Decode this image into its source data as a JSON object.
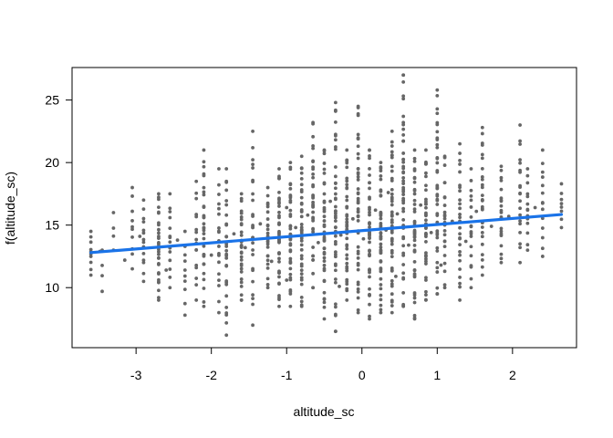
{
  "chart_data": {
    "type": "scatter",
    "title": "",
    "xlabel": "altitude_sc",
    "ylabel": "f(altitude_sc)",
    "xlim": [
      -3.85,
      2.85
    ],
    "ylim": [
      5.2,
      27.6
    ],
    "xticks": [
      -3,
      -2,
      -1,
      0,
      1,
      2
    ],
    "yticks": [
      10,
      15,
      20,
      25
    ],
    "grid": false,
    "point_color": "#666666",
    "line_color": "#1a73e8",
    "fit_line": {
      "x": [
        -3.6,
        2.65
      ],
      "y": [
        12.8,
        15.85
      ]
    },
    "columns": [
      {
        "x": -3.6,
        "ymin": 11.0,
        "ymax": 14.5,
        "n": 10
      },
      {
        "x": -3.45,
        "ymin": 9.7,
        "ymax": 13.0,
        "n": 4
      },
      {
        "x": -3.3,
        "ymin": 13.0,
        "ymax": 16.0,
        "n": 4
      },
      {
        "x": -3.05,
        "ymin": 11.5,
        "ymax": 18.0,
        "n": 10
      },
      {
        "x": -2.9,
        "ymin": 10.5,
        "ymax": 17.0,
        "n": 14
      },
      {
        "x": -2.7,
        "ymin": 9.0,
        "ymax": 17.5,
        "n": 32
      },
      {
        "x": -2.55,
        "ymin": 10.0,
        "ymax": 17.5,
        "n": 14
      },
      {
        "x": -2.35,
        "ymin": 7.8,
        "ymax": 14.5,
        "n": 10
      },
      {
        "x": -2.2,
        "ymin": 9.0,
        "ymax": 18.5,
        "n": 16
      },
      {
        "x": -2.1,
        "ymin": 8.5,
        "ymax": 21.0,
        "n": 30
      },
      {
        "x": -1.9,
        "ymin": 8.0,
        "ymax": 19.5,
        "n": 20
      },
      {
        "x": -1.8,
        "ymin": 6.2,
        "ymax": 19.5,
        "n": 28
      },
      {
        "x": -1.6,
        "ymin": 9.0,
        "ymax": 17.5,
        "n": 32
      },
      {
        "x": -1.45,
        "ymin": 7.0,
        "ymax": 22.5,
        "n": 26
      },
      {
        "x": -1.25,
        "ymin": 10.0,
        "ymax": 18.0,
        "n": 26
      },
      {
        "x": -1.1,
        "ymin": 8.5,
        "ymax": 19.5,
        "n": 40
      },
      {
        "x": -0.95,
        "ymin": 8.5,
        "ymax": 20.0,
        "n": 40
      },
      {
        "x": -0.8,
        "ymin": 8.5,
        "ymax": 20.5,
        "n": 40
      },
      {
        "x": -0.65,
        "ymin": 10.0,
        "ymax": 23.2,
        "n": 34
      },
      {
        "x": -0.5,
        "ymin": 7.5,
        "ymax": 21.0,
        "n": 42
      },
      {
        "x": -0.35,
        "ymin": 6.5,
        "ymax": 24.8,
        "n": 44
      },
      {
        "x": -0.2,
        "ymin": 9.0,
        "ymax": 21.0,
        "n": 44
      },
      {
        "x": -0.05,
        "ymin": 8.0,
        "ymax": 24.5,
        "n": 48
      },
      {
        "x": 0.1,
        "ymin": 7.5,
        "ymax": 21.0,
        "n": 44
      },
      {
        "x": 0.25,
        "ymin": 8.0,
        "ymax": 20.0,
        "n": 44
      },
      {
        "x": 0.4,
        "ymin": 8.0,
        "ymax": 22.5,
        "n": 46
      },
      {
        "x": 0.55,
        "ymin": 8.5,
        "ymax": 27.0,
        "n": 50
      },
      {
        "x": 0.7,
        "ymin": 7.5,
        "ymax": 21.0,
        "n": 42
      },
      {
        "x": 0.85,
        "ymin": 9.0,
        "ymax": 21.0,
        "n": 40
      },
      {
        "x": 1.0,
        "ymin": 9.5,
        "ymax": 25.8,
        "n": 40
      },
      {
        "x": 1.1,
        "ymin": 10.0,
        "ymax": 20.5,
        "n": 24
      },
      {
        "x": 1.3,
        "ymin": 9.0,
        "ymax": 21.5,
        "n": 28
      },
      {
        "x": 1.45,
        "ymin": 10.0,
        "ymax": 19.5,
        "n": 18
      },
      {
        "x": 1.6,
        "ymin": 11.0,
        "ymax": 22.8,
        "n": 28
      },
      {
        "x": 1.85,
        "ymin": 12.0,
        "ymax": 19.7,
        "n": 22
      },
      {
        "x": 2.1,
        "ymin": 12.0,
        "ymax": 23.0,
        "n": 20
      },
      {
        "x": 2.2,
        "ymin": 13.0,
        "ymax": 19.5,
        "n": 14
      },
      {
        "x": 2.4,
        "ymin": 12.5,
        "ymax": 21.0,
        "n": 14
      },
      {
        "x": 2.65,
        "ymin": 14.8,
        "ymax": 18.3,
        "n": 8
      }
    ],
    "scatter_points": [
      {
        "x": -3.48,
        "y": 12.9
      },
      {
        "x": -3.15,
        "y": 12.2
      },
      {
        "x": -2.95,
        "y": 14.1
      },
      {
        "x": -2.6,
        "y": 11.4
      },
      {
        "x": -2.45,
        "y": 13.8
      },
      {
        "x": -2.0,
        "y": 12.6
      },
      {
        "x": -1.7,
        "y": 14.3
      },
      {
        "x": -1.55,
        "y": 13.2
      },
      {
        "x": -1.35,
        "y": 15.1
      },
      {
        "x": -1.2,
        "y": 12.1
      },
      {
        "x": -1.0,
        "y": 16.4
      },
      {
        "x": -0.88,
        "y": 14.8
      },
      {
        "x": -0.72,
        "y": 15.8
      },
      {
        "x": -0.58,
        "y": 13.6
      },
      {
        "x": -0.42,
        "y": 16.9
      },
      {
        "x": -0.28,
        "y": 14.2
      },
      {
        "x": -0.12,
        "y": 15.5
      },
      {
        "x": 0.02,
        "y": 13.9
      },
      {
        "x": 0.18,
        "y": 16.2
      },
      {
        "x": 0.32,
        "y": 14.6
      },
      {
        "x": 0.47,
        "y": 15.9
      },
      {
        "x": 0.62,
        "y": 13.4
      },
      {
        "x": 0.78,
        "y": 16.6
      },
      {
        "x": 0.92,
        "y": 14.4
      },
      {
        "x": 1.2,
        "y": 15.3
      },
      {
        "x": 1.38,
        "y": 13.7
      },
      {
        "x": 1.52,
        "y": 16.1
      },
      {
        "x": 1.72,
        "y": 14.9
      },
      {
        "x": 1.95,
        "y": 15.7
      },
      {
        "x": 2.3,
        "y": 16.4
      },
      {
        "x": -0.65,
        "y": 18.2
      },
      {
        "x": -0.05,
        "y": 19.1
      },
      {
        "x": 0.35,
        "y": 17.6
      },
      {
        "x": 0.7,
        "y": 18.8
      },
      {
        "x": -1.0,
        "y": 10.6
      },
      {
        "x": -0.3,
        "y": 10.1
      },
      {
        "x": 0.45,
        "y": 10.9
      },
      {
        "x": 1.05,
        "y": 11.8
      }
    ]
  }
}
